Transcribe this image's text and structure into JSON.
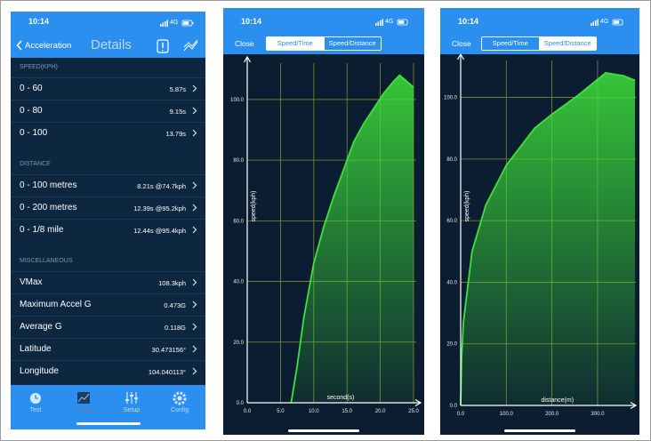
{
  "screens": [
    {
      "status": {
        "time": "10:14",
        "network": "4G"
      },
      "nav": {
        "back": "Acceleration",
        "title": "Details"
      },
      "sections": [
        {
          "title": "SPEED(KPH)",
          "rows": [
            {
              "label": "0 - 60",
              "value": "5.87s"
            },
            {
              "label": "0 - 80",
              "value": "9.15s"
            },
            {
              "label": "0 - 100",
              "value": "13.79s"
            }
          ]
        },
        {
          "title": "DISTANCE",
          "rows": [
            {
              "label": "0 - 100 metres",
              "value": "8.21s @74.7kph"
            },
            {
              "label": "0 - 200 metres",
              "value": "12.39s @95.2kph"
            },
            {
              "label": "0 - 1/8 mile",
              "value": "12.44s @95.4kph"
            }
          ]
        },
        {
          "title": "MISCELLANEOUS",
          "rows": [
            {
              "label": "VMax",
              "value": "108.3kph"
            },
            {
              "label": "Maximum Accel G",
              "value": "0.473G"
            },
            {
              "label": "Average G",
              "value": "0.118G"
            },
            {
              "label": "Latitude",
              "value": "30.473156°"
            },
            {
              "label": "Longitude",
              "value": "104.040113°"
            }
          ]
        }
      ],
      "tabs": [
        "Test",
        "Results",
        "Setup",
        "Config"
      ]
    },
    {
      "status": {
        "time": "10:14",
        "network": "4G"
      },
      "close": "Close",
      "segments": [
        "Speed/Time",
        "Speed/Distance"
      ],
      "selected_segment": 0,
      "chart": {
        "type": "area",
        "x_label": "second(s)",
        "y_label": "speed(kph)",
        "x": [
          6.6,
          7.5,
          8.5,
          10.0,
          11.5,
          13.0,
          14.5,
          16.0,
          17.5,
          19.0,
          20.5,
          22.0,
          22.9,
          24.0,
          25.0
        ],
        "values": [
          0,
          12,
          28,
          46,
          58,
          68,
          77,
          86,
          92,
          97,
          102,
          106,
          108,
          106,
          104
        ],
        "xlim": [
          0,
          25.4
        ],
        "ylim": [
          0,
          112
        ],
        "xticks": [
          {
            "value": 0,
            "label": "0.0"
          },
          {
            "value": 5,
            "label": "5.0"
          },
          {
            "value": 10,
            "label": "10.0"
          },
          {
            "value": 15,
            "label": "15.0"
          },
          {
            "value": 20,
            "label": "20.0"
          },
          {
            "value": 25,
            "label": "25.0"
          }
        ],
        "yticks": [
          {
            "value": 0,
            "label": "0.0"
          },
          {
            "value": 20,
            "label": "20.0"
          },
          {
            "value": 40,
            "label": "40.0"
          },
          {
            "value": 60,
            "label": "60.0"
          },
          {
            "value": 80,
            "label": "80.0"
          },
          {
            "value": 100,
            "label": "100.0"
          }
        ],
        "color": "#3ee23a",
        "grid": true
      }
    },
    {
      "status": {
        "time": "10:14",
        "network": "4G"
      },
      "close": "Close",
      "segments": [
        "Speed/Time",
        "Speed/Distance"
      ],
      "selected_segment": 1,
      "chart": {
        "type": "area",
        "x_label": "distance(m)",
        "y_label": "speed(kph)",
        "x": [
          0,
          2,
          6,
          25,
          55,
          100,
          162,
          200,
          260,
          318,
          357,
          382
        ],
        "values": [
          0,
          15,
          27,
          50,
          65,
          78,
          90,
          94.5,
          101,
          108,
          107,
          105.5
        ],
        "xlim": [
          0,
          385
        ],
        "ylim": [
          0,
          112
        ],
        "xticks": [
          {
            "value": 0,
            "label": "0.0"
          },
          {
            "value": 100,
            "label": "100.0"
          },
          {
            "value": 200,
            "label": "200.0"
          },
          {
            "value": 300,
            "label": "300.0"
          }
        ],
        "yticks": [
          {
            "value": 0,
            "label": "0.0"
          },
          {
            "value": 20,
            "label": "20.0"
          },
          {
            "value": 40,
            "label": "40.0"
          },
          {
            "value": 60,
            "label": "60.0"
          },
          {
            "value": 80,
            "label": "80.0"
          },
          {
            "value": 100,
            "label": "100.0"
          }
        ],
        "color": "#3ee23a",
        "grid": true
      }
    }
  ]
}
